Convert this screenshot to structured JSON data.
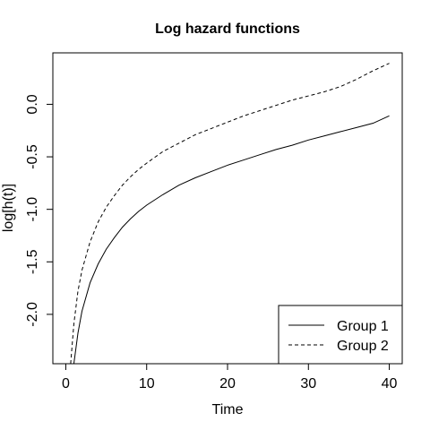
{
  "chart_data": {
    "type": "line",
    "title": "Log hazard functions",
    "xlabel": "Time",
    "ylabel": "log[h(t)]",
    "xlim": [
      -1.6,
      41.6
    ],
    "ylim": [
      -2.47,
      0.49
    ],
    "x_ticks": [
      {
        "value": 0,
        "label": "0"
      },
      {
        "value": 10,
        "label": "10"
      },
      {
        "value": 20,
        "label": "20"
      },
      {
        "value": 30,
        "label": "30"
      },
      {
        "value": 40,
        "label": "40"
      }
    ],
    "y_ticks": [
      {
        "value": 0.0,
        "label": "0.0"
      },
      {
        "value": -0.5,
        "label": "-0.5"
      },
      {
        "value": -1.0,
        "label": "-1.0"
      },
      {
        "value": -1.5,
        "label": "-1.5"
      },
      {
        "value": -2.0,
        "label": "-2.0"
      }
    ],
    "grid": false,
    "legend_position": "bottom-right",
    "series": [
      {
        "name": "Group 1",
        "style": "solid",
        "color": "#000000",
        "points": [
          [
            1,
            -2.47
          ],
          [
            1.5,
            -2.18
          ],
          [
            2,
            -1.97
          ],
          [
            3,
            -1.7
          ],
          [
            4,
            -1.52
          ],
          [
            5,
            -1.38
          ],
          [
            6,
            -1.27
          ],
          [
            7,
            -1.17
          ],
          [
            8,
            -1.09
          ],
          [
            9,
            -1.02
          ],
          [
            10,
            -0.96
          ],
          [
            12,
            -0.86
          ],
          [
            14,
            -0.77
          ],
          [
            16,
            -0.7
          ],
          [
            18,
            -0.64
          ],
          [
            20,
            -0.58
          ],
          [
            22,
            -0.53
          ],
          [
            24,
            -0.48
          ],
          [
            26,
            -0.43
          ],
          [
            28,
            -0.39
          ],
          [
            30,
            -0.34
          ],
          [
            32,
            -0.3
          ],
          [
            34,
            -0.26
          ],
          [
            36,
            -0.22
          ],
          [
            38,
            -0.18
          ],
          [
            40,
            -0.11
          ]
        ]
      },
      {
        "name": "Group 2",
        "style": "dashed",
        "color": "#000000",
        "points": [
          [
            0.6,
            -2.47
          ],
          [
            1,
            -2.09
          ],
          [
            1.5,
            -1.78
          ],
          [
            2,
            -1.58
          ],
          [
            3,
            -1.31
          ],
          [
            4,
            -1.12
          ],
          [
            5,
            -0.98
          ],
          [
            6,
            -0.87
          ],
          [
            7,
            -0.77
          ],
          [
            8,
            -0.69
          ],
          [
            9,
            -0.62
          ],
          [
            10,
            -0.56
          ],
          [
            12,
            -0.45
          ],
          [
            14,
            -0.37
          ],
          [
            16,
            -0.29
          ],
          [
            18,
            -0.23
          ],
          [
            20,
            -0.17
          ],
          [
            22,
            -0.11
          ],
          [
            24,
            -0.06
          ],
          [
            26,
            -0.01
          ],
          [
            28,
            0.04
          ],
          [
            30,
            0.08
          ],
          [
            32,
            0.12
          ],
          [
            34,
            0.17
          ],
          [
            36,
            0.24
          ],
          [
            38,
            0.32
          ],
          [
            40,
            0.39
          ]
        ]
      }
    ]
  }
}
